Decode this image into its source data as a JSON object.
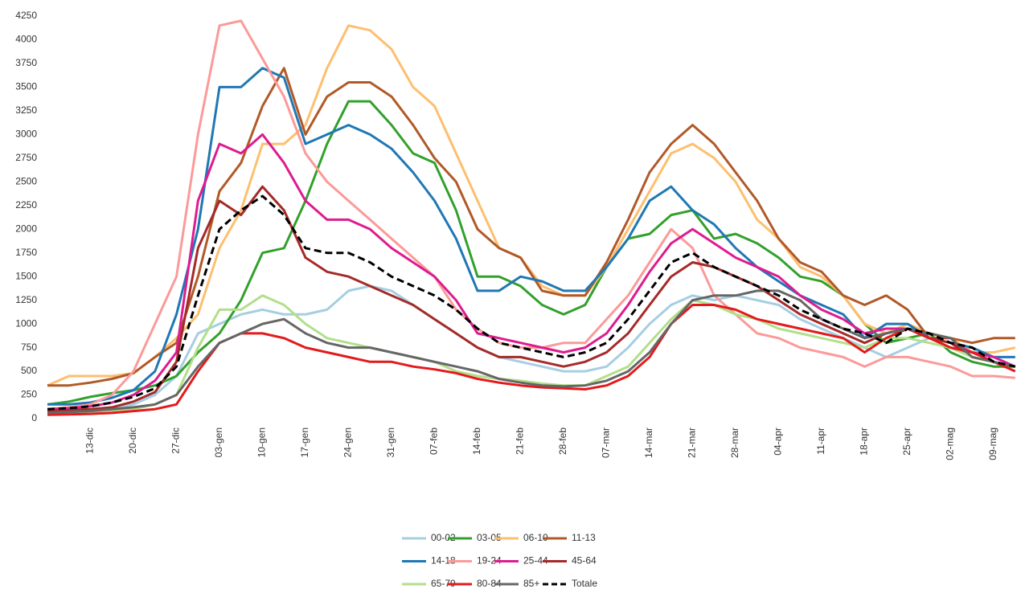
{
  "chart_data": {
    "type": "line",
    "categories": [
      null,
      null,
      "13-dic",
      null,
      "20-dic",
      null,
      "27-dic",
      null,
      "03-gen",
      null,
      "10-gen",
      null,
      "17-gen",
      null,
      "24-gen",
      null,
      "31-gen",
      null,
      "07-feb",
      null,
      "14-feb",
      null,
      "21-feb",
      null,
      "28-feb",
      null,
      "07-mar",
      null,
      "14-mar",
      null,
      "21-mar",
      null,
      "28-mar",
      null,
      "04-apr",
      null,
      "11-apr",
      null,
      "18-apr",
      null,
      "25-apr",
      null,
      "02-mag",
      null,
      "09-mag",
      null
    ],
    "ylim": [
      0,
      4250
    ],
    "yticks": [
      0,
      250,
      500,
      750,
      1000,
      1250,
      1500,
      1750,
      2000,
      2250,
      2500,
      2750,
      3000,
      3250,
      3500,
      3750,
      4000,
      4250
    ],
    "legend": "bottom",
    "series": [
      {
        "name": "00-02",
        "color": "#a6cee3",
        "values": [
          50,
          60,
          80,
          110,
          150,
          250,
          450,
          900,
          1000,
          1100,
          1150,
          1100,
          1100,
          1150,
          1350,
          1400,
          1350,
          1200,
          1050,
          900,
          750,
          650,
          600,
          550,
          500,
          500,
          550,
          750,
          1000,
          1200,
          1300,
          1250,
          1300,
          1250,
          1200,
          1050,
          950,
          850,
          750,
          650,
          750,
          850,
          750,
          700,
          600,
          550
        ]
      },
      {
        "name": "03-05",
        "color": "#33a02c",
        "values": [
          150,
          180,
          230,
          270,
          300,
          350,
          450,
          700,
          900,
          1250,
          1750,
          1800,
          2300,
          2900,
          3350,
          3350,
          3100,
          2800,
          2700,
          2200,
          1500,
          1500,
          1400,
          1200,
          1100,
          1200,
          1600,
          1900,
          1950,
          2150,
          2200,
          1900,
          1950,
          1850,
          1700,
          1500,
          1450,
          1300,
          1000,
          800,
          850,
          900,
          700,
          600,
          550,
          550
        ]
      },
      {
        "name": "06-10",
        "color": "#fdbf6f",
        "values": [
          350,
          450,
          450,
          450,
          480,
          650,
          850,
          1100,
          1800,
          2200,
          2900,
          2900,
          3100,
          3700,
          4150,
          4100,
          3900,
          3500,
          3300,
          2800,
          2300,
          1800,
          1700,
          1400,
          1300,
          1300,
          1600,
          2000,
          2400,
          2800,
          2900,
          2750,
          2500,
          2100,
          1900,
          1600,
          1500,
          1300,
          1000,
          900,
          1000,
          900,
          850,
          700,
          700,
          750
        ]
      },
      {
        "name": "11-13",
        "color": "#b15928",
        "values": [
          350,
          350,
          380,
          420,
          480,
          650,
          800,
          1500,
          2400,
          2700,
          3300,
          3700,
          3000,
          3400,
          3550,
          3550,
          3400,
          3100,
          2750,
          2500,
          2000,
          1800,
          1700,
          1350,
          1300,
          1300,
          1650,
          2100,
          2600,
          2900,
          3100,
          2900,
          2600,
          2300,
          1900,
          1650,
          1550,
          1300,
          1200,
          1300,
          1150,
          850,
          850,
          800,
          850,
          850
        ]
      },
      {
        "name": "14-18",
        "color": "#1f78b4",
        "values": [
          150,
          150,
          170,
          220,
          300,
          500,
          1100,
          2000,
          3500,
          3500,
          3700,
          3600,
          2900,
          3000,
          3100,
          3000,
          2850,
          2600,
          2300,
          1900,
          1350,
          1350,
          1500,
          1450,
          1350,
          1350,
          1600,
          1900,
          2300,
          2450,
          2200,
          2050,
          1800,
          1600,
          1450,
          1300,
          1200,
          1100,
          850,
          1000,
          1000,
          850,
          800,
          750,
          650,
          650
        ]
      },
      {
        "name": "19-24",
        "color": "#fb9a99",
        "values": [
          100,
          120,
          150,
          250,
          500,
          1000,
          1500,
          3000,
          4150,
          4200,
          3800,
          3400,
          2800,
          2500,
          2300,
          2100,
          1900,
          1700,
          1500,
          1150,
          950,
          800,
          750,
          750,
          800,
          800,
          1050,
          1300,
          1650,
          2000,
          1800,
          1300,
          1100,
          900,
          850,
          750,
          700,
          650,
          550,
          650,
          650,
          600,
          550,
          450,
          450,
          430
        ]
      },
      {
        "name": "25-44",
        "color": "#dd1c8f",
        "values": [
          100,
          110,
          130,
          170,
          250,
          400,
          700,
          2300,
          2900,
          2800,
          3000,
          2700,
          2300,
          2100,
          2100,
          2000,
          1800,
          1650,
          1500,
          1250,
          900,
          850,
          800,
          750,
          700,
          750,
          900,
          1200,
          1550,
          1850,
          2000,
          1850,
          1700,
          1600,
          1500,
          1300,
          1150,
          1050,
          900,
          950,
          950,
          850,
          800,
          700,
          650,
          550
        ]
      },
      {
        "name": "45-64",
        "color": "#a52a2a",
        "values": [
          80,
          90,
          100,
          120,
          180,
          280,
          600,
          1800,
          2300,
          2150,
          2450,
          2200,
          1700,
          1550,
          1500,
          1400,
          1300,
          1200,
          1050,
          900,
          750,
          650,
          650,
          600,
          550,
          600,
          700,
          900,
          1200,
          1500,
          1650,
          1600,
          1500,
          1400,
          1250,
          1100,
          1000,
          900,
          800,
          900,
          950,
          850,
          800,
          650,
          600,
          550
        ]
      },
      {
        "name": "65-79",
        "color": "#b2df8a",
        "values": [
          50,
          60,
          70,
          80,
          100,
          150,
          250,
          750,
          1150,
          1150,
          1300,
          1200,
          1000,
          850,
          800,
          750,
          700,
          650,
          600,
          500,
          450,
          420,
          400,
          370,
          350,
          350,
          450,
          550,
          800,
          1050,
          1250,
          1200,
          1100,
          1050,
          950,
          900,
          850,
          800,
          750,
          850,
          850,
          800,
          750,
          650,
          600,
          550
        ]
      },
      {
        "name": "80-84",
        "color": "#e31a1c",
        "values": [
          40,
          45,
          50,
          60,
          80,
          100,
          150,
          500,
          800,
          900,
          900,
          850,
          750,
          700,
          650,
          600,
          600,
          550,
          520,
          480,
          420,
          380,
          350,
          330,
          320,
          310,
          350,
          450,
          650,
          1000,
          1200,
          1200,
          1150,
          1050,
          1000,
          950,
          900,
          850,
          700,
          850,
          950,
          850,
          750,
          700,
          600,
          500
        ]
      },
      {
        "name": "85+",
        "color": "#666666",
        "values": [
          60,
          70,
          80,
          100,
          120,
          150,
          250,
          550,
          800,
          900,
          1000,
          1050,
          900,
          800,
          750,
          750,
          700,
          650,
          600,
          550,
          500,
          420,
          380,
          350,
          340,
          350,
          400,
          500,
          700,
          1000,
          1250,
          1300,
          1300,
          1350,
          1350,
          1250,
          1050,
          950,
          850,
          900,
          950,
          900,
          850,
          650,
          600,
          550
        ]
      },
      {
        "name": "Totale",
        "color": "#000000",
        "dashed": true,
        "values": [
          100,
          110,
          130,
          170,
          230,
          320,
          550,
          1300,
          2000,
          2200,
          2350,
          2150,
          1800,
          1750,
          1750,
          1650,
          1500,
          1400,
          1300,
          1150,
          950,
          800,
          750,
          700,
          650,
          700,
          800,
          1050,
          1350,
          1650,
          1750,
          1600,
          1500,
          1400,
          1300,
          1150,
          1050,
          950,
          900,
          800,
          950,
          900,
          800,
          750,
          600,
          550
        ]
      }
    ]
  }
}
